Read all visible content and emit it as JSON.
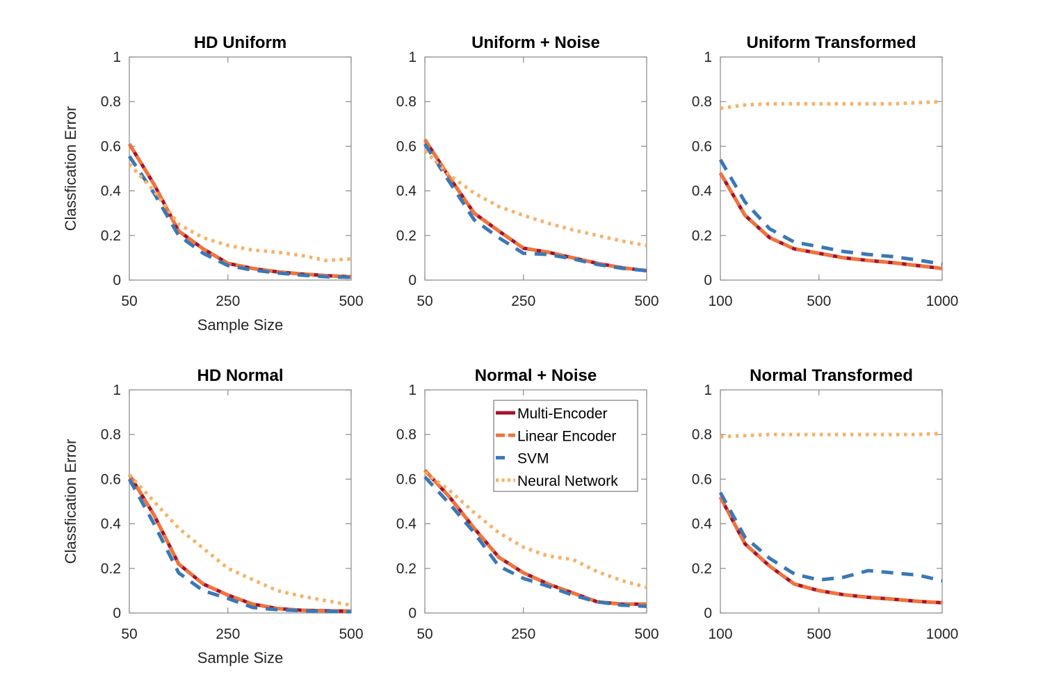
{
  "figure": {
    "background": "#ffffff",
    "ylabel": "Classfication Error",
    "xlabel": "Sample Size",
    "axis_color": "#8a8a8a",
    "text_color": "#262626",
    "title_color": "#000000"
  },
  "series_styles": [
    {
      "name": "Multi-Encoder",
      "color": "#A2142F",
      "style": "solid"
    },
    {
      "name": "Linear Encoder",
      "color": "#F0743B",
      "style": "dash_short"
    },
    {
      "name": "SVM",
      "color": "#3A78B5",
      "style": "dash"
    },
    {
      "name": "Neural Network",
      "color": "#F7B168",
      "style": "dot"
    }
  ],
  "legend": {
    "entries": [
      "Multi-Encoder",
      "Linear Encoder",
      "SVM",
      "Neural Network"
    ],
    "position": "inside-top of Normal + Noise panel",
    "border_color": "#7a7a7a",
    "background": "#ffffff"
  },
  "chart_data": [
    {
      "id": "hd-uniform",
      "type": "line",
      "row": 0,
      "col": 0,
      "title": "HD Uniform",
      "xlabel": "Sample Size",
      "ylabel": "Classfication Error",
      "xlim": [
        50,
        500
      ],
      "ylim": [
        0,
        1
      ],
      "grid": false,
      "xticks": [
        50,
        250,
        500
      ],
      "ytick_labels": [
        "0",
        "0.2",
        "0.4",
        "0.6",
        "0.8",
        "1"
      ],
      "x": [
        50,
        100,
        150,
        200,
        250,
        300,
        350,
        400,
        450,
        500
      ],
      "series": [
        {
          "name": "Multi-Encoder",
          "values": [
            0.61,
            0.43,
            0.22,
            0.14,
            0.075,
            0.052,
            0.037,
            0.027,
            0.02,
            0.015
          ]
        },
        {
          "name": "Linear Encoder",
          "values": [
            0.61,
            0.43,
            0.22,
            0.14,
            0.075,
            0.052,
            0.037,
            0.027,
            0.02,
            0.015
          ]
        },
        {
          "name": "SVM",
          "values": [
            0.555,
            0.39,
            0.2,
            0.12,
            0.065,
            0.045,
            0.032,
            0.022,
            0.015,
            0.012
          ]
        },
        {
          "name": "Neural Network",
          "values": [
            0.52,
            0.4,
            0.25,
            0.19,
            0.155,
            0.135,
            0.125,
            0.11,
            0.088,
            0.095
          ]
        }
      ],
      "legend": false
    },
    {
      "id": "uniform-noise",
      "type": "line",
      "row": 0,
      "col": 1,
      "title": "Uniform + Noise",
      "xlabel": null,
      "ylabel": null,
      "xlim": [
        50,
        500
      ],
      "ylim": [
        0,
        1
      ],
      "grid": false,
      "xticks": [
        50,
        250,
        500
      ],
      "ytick_labels": [
        "0",
        "0.2",
        "0.4",
        "0.6",
        "0.8",
        "1"
      ],
      "x": [
        50,
        100,
        150,
        200,
        250,
        300,
        350,
        400,
        450,
        500
      ],
      "series": [
        {
          "name": "Multi-Encoder",
          "values": [
            0.63,
            0.46,
            0.3,
            0.22,
            0.143,
            0.125,
            0.1,
            0.075,
            0.055,
            0.042
          ]
        },
        {
          "name": "Linear Encoder",
          "values": [
            0.63,
            0.46,
            0.3,
            0.22,
            0.143,
            0.125,
            0.1,
            0.075,
            0.055,
            0.042
          ]
        },
        {
          "name": "SVM",
          "values": [
            0.61,
            0.44,
            0.27,
            0.19,
            0.12,
            0.115,
            0.095,
            0.07,
            0.053,
            0.042
          ]
        },
        {
          "name": "Neural Network",
          "values": [
            0.58,
            0.47,
            0.39,
            0.33,
            0.29,
            0.255,
            0.225,
            0.2,
            0.175,
            0.155
          ]
        }
      ],
      "legend": false
    },
    {
      "id": "uniform-transformed",
      "type": "line",
      "row": 0,
      "col": 2,
      "title": "Uniform Transformed",
      "xlabel": null,
      "ylabel": null,
      "xlim": [
        100,
        1000
      ],
      "ylim": [
        0,
        1
      ],
      "grid": false,
      "xticks": [
        100,
        500,
        1000
      ],
      "ytick_labels": [
        "0",
        "0.2",
        "0.4",
        "0.6",
        "0.8",
        "1"
      ],
      "x": [
        100,
        200,
        300,
        400,
        500,
        600,
        700,
        800,
        900,
        1000
      ],
      "series": [
        {
          "name": "Multi-Encoder",
          "values": [
            0.48,
            0.29,
            0.19,
            0.14,
            0.12,
            0.1,
            0.088,
            0.078,
            0.065,
            0.052
          ]
        },
        {
          "name": "Linear Encoder",
          "values": [
            0.48,
            0.29,
            0.19,
            0.14,
            0.12,
            0.1,
            0.088,
            0.078,
            0.065,
            0.052
          ]
        },
        {
          "name": "SVM",
          "values": [
            0.54,
            0.35,
            0.23,
            0.17,
            0.15,
            0.128,
            0.115,
            0.105,
            0.09,
            0.072
          ]
        },
        {
          "name": "Neural Network",
          "values": [
            0.77,
            0.785,
            0.79,
            0.79,
            0.79,
            0.79,
            0.79,
            0.79,
            0.795,
            0.8
          ]
        }
      ],
      "legend": false
    },
    {
      "id": "hd-normal",
      "type": "line",
      "row": 1,
      "col": 0,
      "title": "HD Normal",
      "xlabel": "Sample Size",
      "ylabel": "Classfication Error",
      "xlim": [
        50,
        500
      ],
      "ylim": [
        0,
        1
      ],
      "grid": false,
      "xticks": [
        50,
        250,
        500
      ],
      "ytick_labels": [
        "0",
        "0.2",
        "0.4",
        "0.6",
        "0.8",
        "1"
      ],
      "x": [
        50,
        100,
        150,
        200,
        250,
        300,
        350,
        400,
        450,
        500
      ],
      "series": [
        {
          "name": "Multi-Encoder",
          "values": [
            0.62,
            0.44,
            0.22,
            0.13,
            0.08,
            0.04,
            0.02,
            0.012,
            0.01,
            0.008
          ]
        },
        {
          "name": "Linear Encoder",
          "values": [
            0.62,
            0.44,
            0.22,
            0.13,
            0.08,
            0.04,
            0.02,
            0.012,
            0.01,
            0.008
          ]
        },
        {
          "name": "SVM",
          "values": [
            0.6,
            0.4,
            0.18,
            0.1,
            0.065,
            0.025,
            0.015,
            0.01,
            0.008,
            0.006
          ]
        },
        {
          "name": "Neural Network",
          "values": [
            0.62,
            0.5,
            0.38,
            0.29,
            0.2,
            0.15,
            0.1,
            0.075,
            0.055,
            0.035
          ]
        }
      ],
      "legend": false
    },
    {
      "id": "normal-noise",
      "type": "line",
      "row": 1,
      "col": 1,
      "title": "Normal + Noise",
      "xlabel": null,
      "ylabel": null,
      "xlim": [
        50,
        500
      ],
      "ylim": [
        0,
        1
      ],
      "grid": false,
      "xticks": [
        50,
        250,
        500
      ],
      "ytick_labels": [
        "0",
        "0.2",
        "0.4",
        "0.6",
        "0.8",
        "1"
      ],
      "x": [
        50,
        100,
        150,
        200,
        250,
        300,
        350,
        400,
        450,
        500
      ],
      "series": [
        {
          "name": "Multi-Encoder",
          "values": [
            0.64,
            0.52,
            0.38,
            0.25,
            0.18,
            0.13,
            0.09,
            0.05,
            0.04,
            0.04
          ]
        },
        {
          "name": "Linear Encoder",
          "values": [
            0.64,
            0.52,
            0.38,
            0.25,
            0.18,
            0.13,
            0.09,
            0.05,
            0.04,
            0.04
          ]
        },
        {
          "name": "SVM",
          "values": [
            0.61,
            0.49,
            0.36,
            0.21,
            0.155,
            0.12,
            0.08,
            0.05,
            0.035,
            0.03
          ]
        },
        {
          "name": "Neural Network",
          "values": [
            0.63,
            0.55,
            0.45,
            0.36,
            0.295,
            0.255,
            0.24,
            0.185,
            0.145,
            0.115
          ]
        }
      ],
      "legend": true
    },
    {
      "id": "normal-transformed",
      "type": "line",
      "row": 1,
      "col": 2,
      "title": "Normal Transformed",
      "xlabel": null,
      "ylabel": null,
      "xlim": [
        100,
        1000
      ],
      "ylim": [
        0,
        1
      ],
      "grid": false,
      "xticks": [
        100,
        500,
        1000
      ],
      "ytick_labels": [
        "0",
        "0.2",
        "0.4",
        "0.6",
        "0.8",
        "1"
      ],
      "x": [
        100,
        200,
        300,
        400,
        500,
        600,
        700,
        800,
        900,
        1000
      ],
      "series": [
        {
          "name": "Multi-Encoder",
          "values": [
            0.52,
            0.31,
            0.21,
            0.13,
            0.1,
            0.082,
            0.07,
            0.062,
            0.052,
            0.046
          ]
        },
        {
          "name": "Linear Encoder",
          "values": [
            0.52,
            0.31,
            0.21,
            0.13,
            0.1,
            0.082,
            0.07,
            0.062,
            0.052,
            0.046
          ]
        },
        {
          "name": "SVM",
          "values": [
            0.54,
            0.34,
            0.245,
            0.175,
            0.148,
            0.16,
            0.19,
            0.18,
            0.17,
            0.145
          ]
        },
        {
          "name": "Neural Network",
          "values": [
            0.79,
            0.795,
            0.8,
            0.8,
            0.8,
            0.8,
            0.8,
            0.8,
            0.8,
            0.805
          ]
        }
      ],
      "legend": false
    }
  ]
}
